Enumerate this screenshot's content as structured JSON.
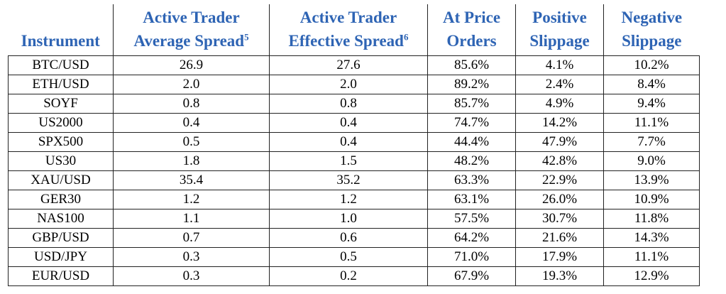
{
  "table": {
    "headers": [
      {
        "line1": "",
        "line2": "Instrument",
        "sup": ""
      },
      {
        "line1": "Active Trader",
        "line2": "Average Spread",
        "sup": "5"
      },
      {
        "line1": "Active Trader",
        "line2": "Effective Spread",
        "sup": "6"
      },
      {
        "line1": "At Price",
        "line2": "Orders",
        "sup": ""
      },
      {
        "line1": "Positive",
        "line2": "Slippage",
        "sup": ""
      },
      {
        "line1": "Negative",
        "line2": "Slippage",
        "sup": ""
      }
    ],
    "rows": [
      [
        "BTC/USD",
        "26.9",
        "27.6",
        "85.6%",
        "4.1%",
        "10.2%"
      ],
      [
        "ETH/USD",
        "2.0",
        "2.0",
        "89.2%",
        "2.4%",
        "8.4%"
      ],
      [
        "SOYF",
        "0.8",
        "0.8",
        "85.7%",
        "4.9%",
        "9.4%"
      ],
      [
        "US2000",
        "0.4",
        "0.4",
        "74.7%",
        "14.2%",
        "11.1%"
      ],
      [
        "SPX500",
        "0.5",
        "0.4",
        "44.4%",
        "47.9%",
        "7.7%"
      ],
      [
        "US30",
        "1.8",
        "1.5",
        "48.2%",
        "42.8%",
        "9.0%"
      ],
      [
        "XAU/USD",
        "35.4",
        "35.2",
        "63.3%",
        "22.9%",
        "13.9%"
      ],
      [
        "GER30",
        "1.2",
        "1.2",
        "63.1%",
        "26.0%",
        "10.9%"
      ],
      [
        "NAS100",
        "1.1",
        "1.0",
        "57.5%",
        "30.7%",
        "11.8%"
      ],
      [
        "GBP/USD",
        "0.7",
        "0.6",
        "64.2%",
        "21.6%",
        "14.3%"
      ],
      [
        "USD/JPY",
        "0.3",
        "0.5",
        "71.0%",
        "17.9%",
        "11.1%"
      ],
      [
        "EUR/USD",
        "0.3",
        "0.2",
        "67.9%",
        "19.3%",
        "12.9%"
      ]
    ]
  },
  "colors": {
    "header_text": "#2e64b4",
    "body_text": "#000000",
    "border": "#222222"
  }
}
